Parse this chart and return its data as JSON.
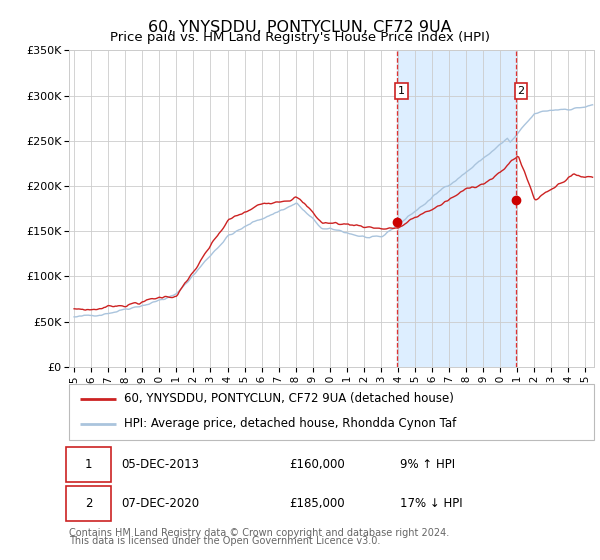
{
  "title": "60, YNYSDDU, PONTYCLUN, CF72 9UA",
  "subtitle": "Price paid vs. HM Land Registry's House Price Index (HPI)",
  "ylim": [
    0,
    350000
  ],
  "yticks": [
    0,
    50000,
    100000,
    150000,
    200000,
    250000,
    300000,
    350000
  ],
  "ytick_labels": [
    "£0",
    "£50K",
    "£100K",
    "£150K",
    "£200K",
    "£250K",
    "£300K",
    "£350K"
  ],
  "xlim_start": 1994.7,
  "xlim_end": 2025.5,
  "xticks": [
    1995,
    1996,
    1997,
    1998,
    1999,
    2000,
    2001,
    2002,
    2003,
    2004,
    2005,
    2006,
    2007,
    2008,
    2009,
    2010,
    2011,
    2012,
    2013,
    2014,
    2015,
    2016,
    2017,
    2018,
    2019,
    2020,
    2021,
    2022,
    2023,
    2024,
    2025
  ],
  "sale1_date": 2013.92,
  "sale1_price": 160000,
  "sale1_label": "1",
  "sale1_hpi_pct": "9% ↑ HPI",
  "sale1_date_str": "05-DEC-2013",
  "sale2_date": 2020.92,
  "sale2_price": 185000,
  "sale2_label": "2",
  "sale2_hpi_pct": "17% ↓ HPI",
  "sale2_date_str": "07-DEC-2020",
  "hpi_line_color": "#aac4dd",
  "price_line_color": "#cc2222",
  "sale_marker_color": "#cc0000",
  "vline_color": "#dd3333",
  "shade_color": "#ddeeff",
  "background_color": "#ffffff",
  "grid_color": "#cccccc",
  "legend_line1": "60, YNYSDDU, PONTYCLUN, CF72 9UA (detached house)",
  "legend_line2": "HPI: Average price, detached house, Rhondda Cynon Taf",
  "footer_line1": "Contains HM Land Registry data © Crown copyright and database right 2024.",
  "footer_line2": "This data is licensed under the Open Government Licence v3.0.",
  "title_fontsize": 11.5,
  "subtitle_fontsize": 9.5,
  "tick_fontsize": 8,
  "legend_fontsize": 8.5,
  "table_fontsize": 8.5,
  "footer_fontsize": 7
}
